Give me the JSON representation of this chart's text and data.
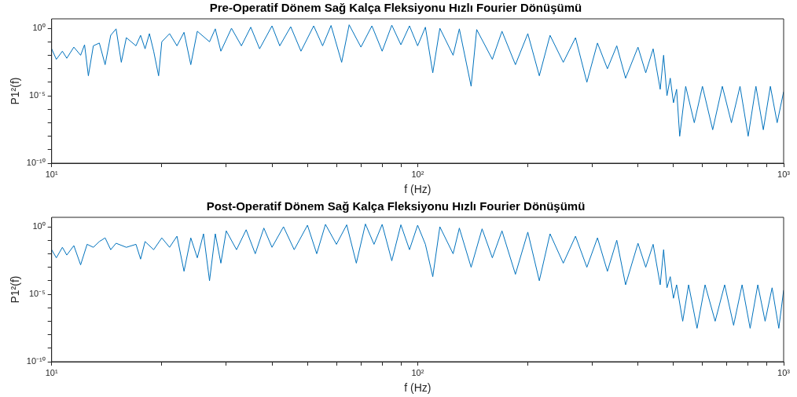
{
  "chart_data": [
    {
      "type": "line",
      "title": "Pre-Operatif Dönem Sağ Kalça Fleksiyonu Hızlı Fourier Dönüşümü",
      "xlabel": "f (Hz)",
      "ylabel": "P1²(f)",
      "log": "xy",
      "grid": false,
      "marker": "none",
      "x": [
        10,
        10.3,
        10.7,
        11,
        11.5,
        12,
        12.3,
        12.6,
        13,
        13.5,
        14,
        14.5,
        15,
        15.5,
        16,
        17,
        17.5,
        18,
        18.5,
        19,
        19.6,
        20,
        21,
        22,
        23,
        24,
        25,
        27,
        28,
        29,
        31,
        33,
        35,
        37,
        40,
        42,
        45,
        48,
        52,
        55,
        58,
        62,
        65,
        70,
        75,
        80,
        85,
        90,
        95,
        100,
        105,
        110,
        115,
        125,
        130,
        140,
        145,
        160,
        170,
        185,
        200,
        215,
        230,
        250,
        270,
        290,
        310,
        330,
        350,
        370,
        400,
        420,
        440,
        460,
        470,
        480,
        490,
        500,
        510,
        520,
        540,
        570,
        600,
        640,
        680,
        720,
        760,
        800,
        840,
        880,
        920,
        960,
        1000
      ],
      "series": [
        {
          "color": "#0072bd",
          "values": [
            0.03,
            0.005,
            0.02,
            0.006,
            0.04,
            0.01,
            0.06,
            0.0003,
            0.05,
            0.08,
            0.002,
            0.3,
            0.9,
            0.003,
            0.2,
            0.05,
            0.3,
            0.03,
            0.4,
            0.02,
            0.0003,
            0.1,
            0.4,
            0.05,
            0.5,
            0.002,
            0.6,
            0.1,
            0.9,
            0.02,
            1,
            0.05,
            1.2,
            0.03,
            1.5,
            0.05,
            1.3,
            0.02,
            1.5,
            0.05,
            1.6,
            0.003,
            1.8,
            0.04,
            1.5,
            0.02,
            1.7,
            0.06,
            1.5,
            0.05,
            1.2,
            0.0005,
            1,
            0.01,
            0.9,
            5e-05,
            0.8,
            0.005,
            0.6,
            0.002,
            0.4,
            0.0003,
            0.3,
            0.003,
            0.2,
            0.0001,
            0.08,
            0.001,
            0.05,
            0.0002,
            0.04,
            0.0005,
            0.03,
            3e-05,
            0.01,
            1e-05,
            0.0002,
            3e-06,
            3e-05,
            1e-08,
            5e-05,
            1e-07,
            5e-05,
            3e-08,
            5e-05,
            1e-07,
            5e-05,
            1e-08,
            5e-05,
            3e-08,
            5e-05,
            1e-07,
            2e-05
          ]
        }
      ],
      "xlim": [
        10,
        1000
      ],
      "ylim": [
        1e-10,
        5
      ],
      "xticks": [
        {
          "value": 10,
          "label": "10¹"
        },
        {
          "value": 20,
          "label": null
        },
        {
          "value": 30,
          "label": null
        },
        {
          "value": 40,
          "label": null
        },
        {
          "value": 50,
          "label": null
        },
        {
          "value": 60,
          "label": null
        },
        {
          "value": 70,
          "label": null
        },
        {
          "value": 80,
          "label": null
        },
        {
          "value": 90,
          "label": null
        },
        {
          "value": 100,
          "label": "10²"
        },
        {
          "value": 200,
          "label": null
        },
        {
          "value": 300,
          "label": null
        },
        {
          "value": 400,
          "label": null
        },
        {
          "value": 500,
          "label": null
        },
        {
          "value": 600,
          "label": null
        },
        {
          "value": 700,
          "label": null
        },
        {
          "value": 800,
          "label": null
        },
        {
          "value": 900,
          "label": null
        },
        {
          "value": 1000,
          "label": "10³"
        }
      ],
      "yticks": [
        {
          "value": 1e-10,
          "label": "10⁻¹⁰"
        },
        {
          "value": 1e-09,
          "label": null
        },
        {
          "value": 1e-08,
          "label": null
        },
        {
          "value": 1e-07,
          "label": null
        },
        {
          "value": 1e-06,
          "label": null
        },
        {
          "value": 1e-05,
          "label": "10⁻⁵"
        },
        {
          "value": 0.0001,
          "label": null
        },
        {
          "value": 0.001,
          "label": null
        },
        {
          "value": 0.01,
          "label": null
        },
        {
          "value": 0.1,
          "label": null
        },
        {
          "value": 1,
          "label": "10⁰"
        }
      ]
    },
    {
      "type": "line",
      "title": "Post-Operatif Dönem Sağ Kalça Fleksiyonu Hızlı Fourier Dönüşümü",
      "xlabel": "f (Hz)",
      "ylabel": "P1²(f)",
      "log": "xy",
      "grid": false,
      "marker": "none",
      "x": [
        10,
        10.3,
        10.7,
        11,
        11.5,
        12,
        12.5,
        13,
        13.5,
        14,
        14.5,
        15,
        16,
        17,
        17.5,
        18,
        19,
        20,
        21,
        22,
        23,
        24,
        25,
        26,
        27,
        28,
        29,
        30,
        32,
        34,
        36,
        38,
        40,
        43,
        46,
        50,
        53,
        56,
        60,
        64,
        68,
        72,
        76,
        80,
        85,
        90,
        95,
        100,
        105,
        110,
        115,
        125,
        130,
        140,
        150,
        160,
        170,
        185,
        200,
        215,
        230,
        250,
        270,
        290,
        310,
        330,
        350,
        370,
        400,
        420,
        440,
        460,
        470,
        480,
        490,
        500,
        510,
        530,
        550,
        580,
        610,
        650,
        690,
        730,
        770,
        810,
        850,
        890,
        930,
        970,
        1000
      ],
      "series": [
        {
          "color": "#0072bd",
          "values": [
            0.02,
            0.005,
            0.03,
            0.008,
            0.04,
            0.0015,
            0.05,
            0.03,
            0.08,
            0.15,
            0.02,
            0.06,
            0.03,
            0.05,
            0.004,
            0.08,
            0.02,
            0.15,
            0.03,
            0.2,
            0.0005,
            0.15,
            0.005,
            0.3,
            0.0001,
            0.3,
            0.002,
            0.5,
            0.02,
            0.6,
            0.01,
            0.8,
            0.03,
            1,
            0.02,
            1.3,
            0.01,
            1.5,
            0.05,
            1.4,
            0.002,
            1.6,
            0.05,
            1.5,
            0.003,
            1.4,
            0.02,
            1.3,
            0.05,
            0.0002,
            1,
            0.01,
            0.8,
            0.001,
            0.7,
            0.005,
            0.5,
            0.0003,
            0.4,
            0.0001,
            0.3,
            0.002,
            0.2,
            0.001,
            0.15,
            0.0005,
            0.1,
            5e-05,
            0.06,
            0.001,
            0.05,
            5e-05,
            0.02,
            3e-05,
            0.0002,
            5e-06,
            5e-05,
            1e-07,
            5e-05,
            3e-08,
            5e-05,
            1e-07,
            5e-05,
            5e-08,
            5e-05,
            3e-08,
            5e-05,
            1e-07,
            3e-05,
            3e-08,
            2e-05
          ]
        }
      ],
      "xlim": [
        10,
        1000
      ],
      "ylim": [
        1e-10,
        5
      ],
      "xticks": [
        {
          "value": 10,
          "label": "10¹"
        },
        {
          "value": 20,
          "label": null
        },
        {
          "value": 30,
          "label": null
        },
        {
          "value": 40,
          "label": null
        },
        {
          "value": 50,
          "label": null
        },
        {
          "value": 60,
          "label": null
        },
        {
          "value": 70,
          "label": null
        },
        {
          "value": 80,
          "label": null
        },
        {
          "value": 90,
          "label": null
        },
        {
          "value": 100,
          "label": "10²"
        },
        {
          "value": 200,
          "label": null
        },
        {
          "value": 300,
          "label": null
        },
        {
          "value": 400,
          "label": null
        },
        {
          "value": 500,
          "label": null
        },
        {
          "value": 600,
          "label": null
        },
        {
          "value": 700,
          "label": null
        },
        {
          "value": 800,
          "label": null
        },
        {
          "value": 900,
          "label": null
        },
        {
          "value": 1000,
          "label": "10³"
        }
      ],
      "yticks": [
        {
          "value": 1e-10,
          "label": "10⁻¹⁰"
        },
        {
          "value": 1e-09,
          "label": null
        },
        {
          "value": 1e-08,
          "label": null
        },
        {
          "value": 1e-07,
          "label": null
        },
        {
          "value": 1e-06,
          "label": null
        },
        {
          "value": 1e-05,
          "label": "10⁻⁵"
        },
        {
          "value": 0.0001,
          "label": null
        },
        {
          "value": 0.001,
          "label": null
        },
        {
          "value": 0.01,
          "label": null
        },
        {
          "value": 0.1,
          "label": null
        },
        {
          "value": 1,
          "label": "10⁰"
        }
      ]
    }
  ]
}
